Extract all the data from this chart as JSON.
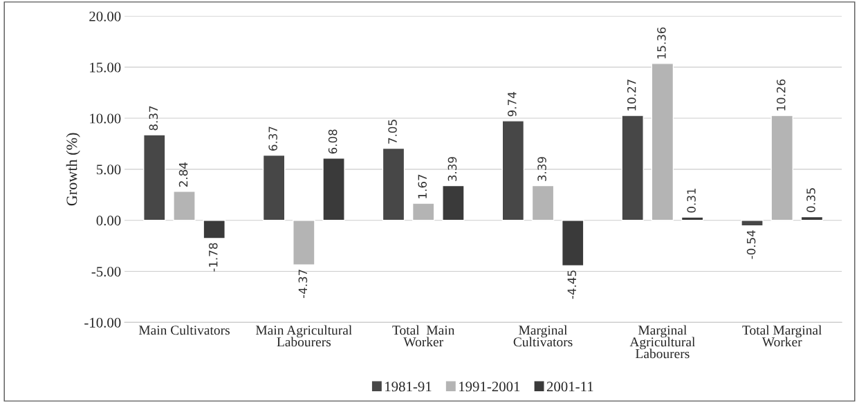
{
  "chart_data": {
    "type": "bar",
    "ylabel": "Growth (%)",
    "categories": [
      "Main Cultivators",
      "Main Agricultural\nLabourers",
      "Total  Main\nWorker",
      "Marginal\nCultivators",
      "Marginal\nAgricultural\nLabourers",
      "Total Marginal\nWorker"
    ],
    "series": [
      {
        "name": "1981-91",
        "color": "#474747",
        "values": [
          8.37,
          6.37,
          7.05,
          9.74,
          10.27,
          -0.54
        ]
      },
      {
        "name": "1991-2001",
        "color": "#b4b4b4",
        "values": [
          2.84,
          -4.37,
          1.67,
          3.39,
          15.36,
          10.26
        ]
      },
      {
        "name": "2001-11",
        "color": "#3a3a3a",
        "values": [
          -1.78,
          6.08,
          3.39,
          -4.45,
          0.31,
          0.35
        ]
      }
    ],
    "ylim": [
      -10,
      20
    ],
    "yticks": [
      {
        "value": -10,
        "label": "-10.00"
      },
      {
        "value": -5,
        "label": "-5.00"
      },
      {
        "value": 0,
        "label": "0.00"
      },
      {
        "value": 5,
        "label": "5.00"
      },
      {
        "value": 10,
        "label": "10.00"
      },
      {
        "value": 15,
        "label": "15.00"
      },
      {
        "value": 20,
        "label": "20.00"
      }
    ],
    "grid": "y",
    "legend": "bottom",
    "data_labels": true
  }
}
